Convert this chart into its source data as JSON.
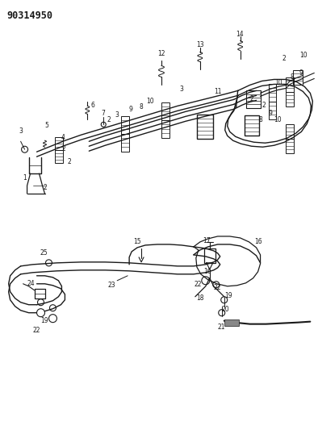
{
  "bg_color": "#ffffff",
  "line_color": "#1a1a1a",
  "part_number": "90314950",
  "figsize": [
    3.94,
    5.33
  ],
  "dpi": 100,
  "lw": 0.9
}
